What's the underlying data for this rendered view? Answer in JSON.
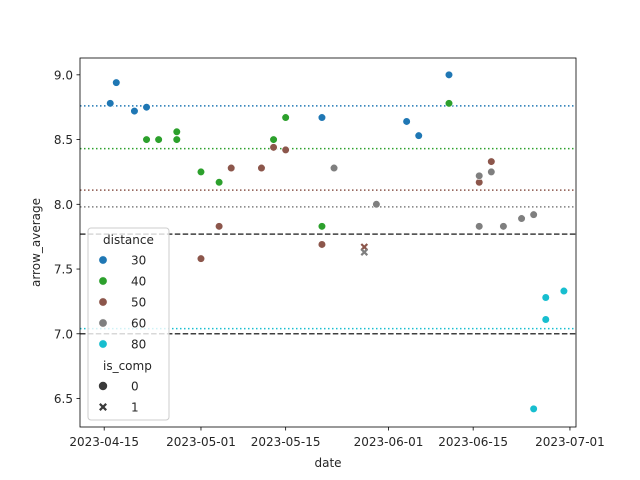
{
  "chart_data": {
    "type": "scatter",
    "xlabel": "date",
    "ylabel": "arrow_average",
    "x_type": "date",
    "xlim": [
      "2023-04-11",
      "2023-07-02"
    ],
    "ylim": [
      6.28,
      9.13
    ],
    "x_ticks": [
      "2023-04-15",
      "2023-05-01",
      "2023-05-15",
      "2023-06-01",
      "2023-06-15",
      "2023-07-01"
    ],
    "y_ticks": [
      6.5,
      7.0,
      7.5,
      8.0,
      8.5,
      9.0
    ],
    "y_tick_labels": [
      "6.5",
      "7.0",
      "7.5",
      "8.0",
      "8.5",
      "9.0"
    ],
    "grid": false,
    "legend_position": "lower-left",
    "legend": {
      "hue_title": "distance",
      "hue_entries": [
        {
          "label": "30",
          "color": "#1f77b4"
        },
        {
          "label": "40",
          "color": "#2ca02c"
        },
        {
          "label": "50",
          "color": "#8c564b"
        },
        {
          "label": "60",
          "color": "#7f7f7f"
        },
        {
          "label": "80",
          "color": "#17becf"
        }
      ],
      "style_title": "is_comp",
      "style_entries": [
        {
          "label": "0",
          "marker": "circle"
        },
        {
          "label": "1",
          "marker": "x"
        }
      ]
    },
    "reference_lines": [
      {
        "y": 8.76,
        "style": "dotted",
        "color": "#1f77b4"
      },
      {
        "y": 8.43,
        "style": "dotted",
        "color": "#2ca02c"
      },
      {
        "y": 8.11,
        "style": "dotted",
        "color": "#8c564b"
      },
      {
        "y": 7.98,
        "style": "dotted",
        "color": "#7f7f7f"
      },
      {
        "y": 7.77,
        "style": "dashed",
        "color": "#3f3f3f"
      },
      {
        "y": 7.04,
        "style": "dotted",
        "color": "#17becf"
      },
      {
        "y": 7.0,
        "style": "dashed",
        "color": "#3f3f3f"
      }
    ],
    "series": [
      {
        "distance": "30",
        "color": "#1f77b4",
        "points": [
          {
            "x": "2023-04-16",
            "y": 8.78,
            "is_comp": 0
          },
          {
            "x": "2023-04-17",
            "y": 8.94,
            "is_comp": 0
          },
          {
            "x": "2023-04-20",
            "y": 8.72,
            "is_comp": 0
          },
          {
            "x": "2023-04-22",
            "y": 8.75,
            "is_comp": 0
          },
          {
            "x": "2023-05-21",
            "y": 8.67,
            "is_comp": 0
          },
          {
            "x": "2023-06-04",
            "y": 8.64,
            "is_comp": 0
          },
          {
            "x": "2023-06-06",
            "y": 8.53,
            "is_comp": 0
          },
          {
            "x": "2023-06-11",
            "y": 9.0,
            "is_comp": 0
          }
        ]
      },
      {
        "distance": "40",
        "color": "#2ca02c",
        "points": [
          {
            "x": "2023-04-22",
            "y": 8.5,
            "is_comp": 0
          },
          {
            "x": "2023-04-24",
            "y": 8.5,
            "is_comp": 0
          },
          {
            "x": "2023-04-27",
            "y": 8.56,
            "is_comp": 0
          },
          {
            "x": "2023-04-27",
            "y": 8.5,
            "is_comp": 0
          },
          {
            "x": "2023-05-01",
            "y": 8.25,
            "is_comp": 0
          },
          {
            "x": "2023-05-04",
            "y": 8.17,
            "is_comp": 0
          },
          {
            "x": "2023-05-13",
            "y": 8.5,
            "is_comp": 0
          },
          {
            "x": "2023-05-15",
            "y": 8.67,
            "is_comp": 0
          },
          {
            "x": "2023-05-21",
            "y": 7.83,
            "is_comp": 0
          },
          {
            "x": "2023-06-11",
            "y": 8.78,
            "is_comp": 0
          }
        ]
      },
      {
        "distance": "50",
        "color": "#8c564b",
        "points": [
          {
            "x": "2023-05-01",
            "y": 7.58,
            "is_comp": 0
          },
          {
            "x": "2023-05-04",
            "y": 7.83,
            "is_comp": 0
          },
          {
            "x": "2023-05-06",
            "y": 8.28,
            "is_comp": 0
          },
          {
            "x": "2023-05-11",
            "y": 8.28,
            "is_comp": 0
          },
          {
            "x": "2023-05-13",
            "y": 8.44,
            "is_comp": 0
          },
          {
            "x": "2023-05-15",
            "y": 8.42,
            "is_comp": 0
          },
          {
            "x": "2023-05-21",
            "y": 7.69,
            "is_comp": 0
          },
          {
            "x": "2023-05-28",
            "y": 7.67,
            "is_comp": 1
          },
          {
            "x": "2023-06-16",
            "y": 8.17,
            "is_comp": 0
          },
          {
            "x": "2023-06-18",
            "y": 8.33,
            "is_comp": 0
          }
        ]
      },
      {
        "distance": "60",
        "color": "#7f7f7f",
        "points": [
          {
            "x": "2023-05-23",
            "y": 8.28,
            "is_comp": 0
          },
          {
            "x": "2023-05-28",
            "y": 7.63,
            "is_comp": 1
          },
          {
            "x": "2023-05-30",
            "y": 8.0,
            "is_comp": 0
          },
          {
            "x": "2023-06-16",
            "y": 8.22,
            "is_comp": 0
          },
          {
            "x": "2023-06-16",
            "y": 7.83,
            "is_comp": 0
          },
          {
            "x": "2023-06-18",
            "y": 8.25,
            "is_comp": 0
          },
          {
            "x": "2023-06-20",
            "y": 7.83,
            "is_comp": 0
          },
          {
            "x": "2023-06-23",
            "y": 7.89,
            "is_comp": 0
          },
          {
            "x": "2023-06-25",
            "y": 7.92,
            "is_comp": 0
          }
        ]
      },
      {
        "distance": "80",
        "color": "#17becf",
        "points": [
          {
            "x": "2023-06-25",
            "y": 6.42,
            "is_comp": 0
          },
          {
            "x": "2023-06-27",
            "y": 7.28,
            "is_comp": 0
          },
          {
            "x": "2023-06-27",
            "y": 7.11,
            "is_comp": 0
          },
          {
            "x": "2023-06-30",
            "y": 7.33,
            "is_comp": 0
          }
        ]
      }
    ]
  }
}
